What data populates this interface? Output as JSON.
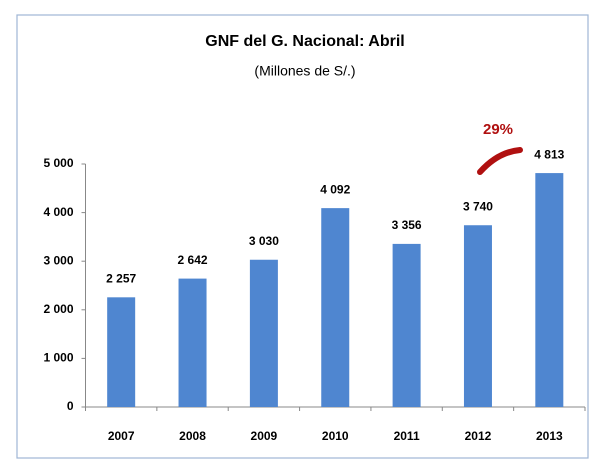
{
  "chart_data": {
    "type": "bar",
    "title": "GNF del G. Nacional: Abril",
    "subtitle": "(Millones de S/.)",
    "annotation": "29%",
    "categories": [
      "2007",
      "2008",
      "2009",
      "2010",
      "2011",
      "2012",
      "2013"
    ],
    "values": [
      2257,
      2642,
      3030,
      4092,
      3356,
      3740,
      4813
    ],
    "value_labels": [
      "2 257",
      "2 642",
      "3 030",
      "4 092",
      "3 356",
      "3 740",
      "4 813"
    ],
    "color": "#4f86d0",
    "ylim": [
      0,
      5000
    ],
    "yticks": [
      {
        "value": 0,
        "label": "0"
      },
      {
        "value": 1000,
        "label": "1 000"
      },
      {
        "value": 2000,
        "label": "2 000"
      },
      {
        "value": 3000,
        "label": "3 000"
      },
      {
        "value": 4000,
        "label": "4 000"
      },
      {
        "value": 5000,
        "label": "5 000"
      }
    ],
    "grid": false
  }
}
